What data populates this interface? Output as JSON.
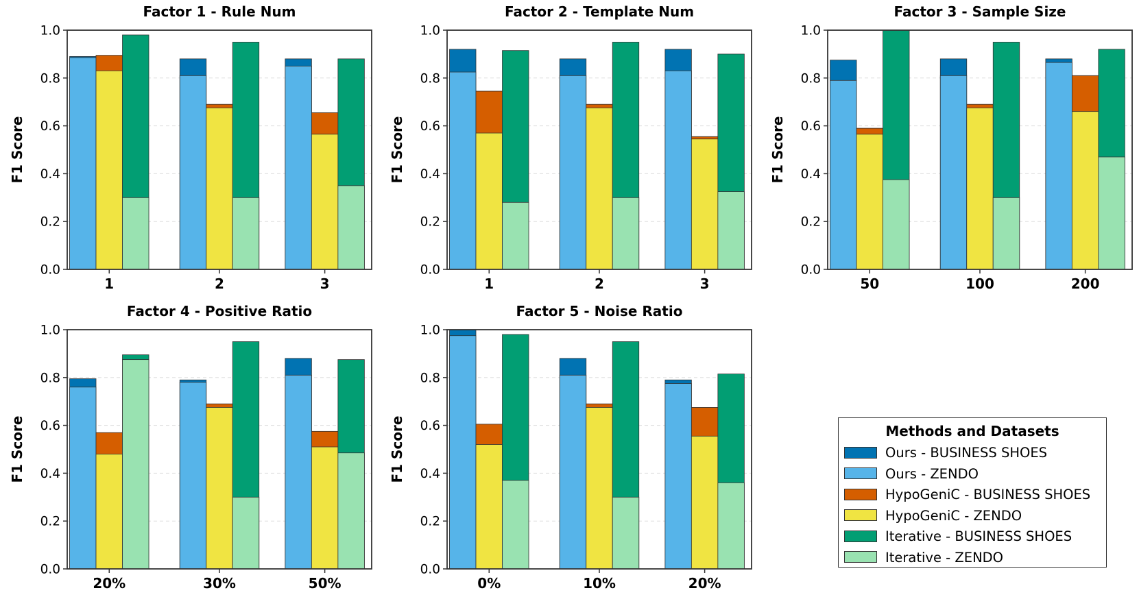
{
  "legend": {
    "title": "Methods and Datasets",
    "entries": [
      {
        "label": "Ours - BUSINESS SHOES",
        "color": "#0173b2"
      },
      {
        "label": "Ours - ZENDO",
        "color": "#56b4e9"
      },
      {
        "label": "HypoGeniC - BUSINESS SHOES",
        "color": "#d55e00"
      },
      {
        "label": "HypoGeniC - ZENDO",
        "color": "#f0e442"
      },
      {
        "label": "Iterative - BUSINESS SHOES",
        "color": "#029e73"
      },
      {
        "label": "Iterative - ZENDO",
        "color": "#99e2b1"
      }
    ]
  },
  "chart_data": [
    {
      "type": "bar",
      "title": "Factor 1 - Rule Num",
      "ylabel": "F1 Score",
      "ylim": [
        0,
        1.0
      ],
      "yticks": [
        "0.0",
        "0.2",
        "0.4",
        "0.6",
        "0.8",
        "1.0"
      ],
      "categories": [
        "1",
        "2",
        "3"
      ],
      "grid": "horizontal dashed",
      "series": [
        {
          "name": "Ours - BUSINESS SHOES",
          "values": [
            0.89,
            0.88,
            0.88
          ]
        },
        {
          "name": "Ours - ZENDO",
          "values": [
            0.885,
            0.81,
            0.85
          ]
        },
        {
          "name": "HypoGeniC - BUSINESS SHOES",
          "values": [
            0.895,
            0.69,
            0.655
          ]
        },
        {
          "name": "HypoGeniC - ZENDO",
          "values": [
            0.83,
            0.675,
            0.565
          ]
        },
        {
          "name": "Iterative - BUSINESS SHOES",
          "values": [
            0.98,
            0.95,
            0.88
          ]
        },
        {
          "name": "Iterative - ZENDO",
          "values": [
            0.3,
            0.3,
            0.35
          ]
        }
      ]
    },
    {
      "type": "bar",
      "title": "Factor 2 - Template Num",
      "ylabel": "F1 Score",
      "ylim": [
        0,
        1.0
      ],
      "yticks": [
        "0.0",
        "0.2",
        "0.4",
        "0.6",
        "0.8",
        "1.0"
      ],
      "categories": [
        "1",
        "2",
        "3"
      ],
      "grid": "horizontal dashed",
      "series": [
        {
          "name": "Ours - BUSINESS SHOES",
          "values": [
            0.92,
            0.88,
            0.92
          ]
        },
        {
          "name": "Ours - ZENDO",
          "values": [
            0.825,
            0.81,
            0.83
          ]
        },
        {
          "name": "HypoGeniC - BUSINESS SHOES",
          "values": [
            0.745,
            0.69,
            0.555
          ]
        },
        {
          "name": "HypoGeniC - ZENDO",
          "values": [
            0.57,
            0.675,
            0.545
          ]
        },
        {
          "name": "Iterative - BUSINESS SHOES",
          "values": [
            0.915,
            0.95,
            0.9
          ]
        },
        {
          "name": "Iterative - ZENDO",
          "values": [
            0.28,
            0.3,
            0.325
          ]
        }
      ]
    },
    {
      "type": "bar",
      "title": "Factor 3 - Sample Size",
      "ylabel": "F1 Score",
      "ylim": [
        0,
        1.0
      ],
      "yticks": [
        "0.0",
        "0.2",
        "0.4",
        "0.6",
        "0.8",
        "1.0"
      ],
      "categories": [
        "50",
        "100",
        "200"
      ],
      "grid": "horizontal dashed",
      "series": [
        {
          "name": "Ours - BUSINESS SHOES",
          "values": [
            0.875,
            0.88,
            0.88
          ]
        },
        {
          "name": "Ours - ZENDO",
          "values": [
            0.79,
            0.81,
            0.865
          ]
        },
        {
          "name": "HypoGeniC - BUSINESS SHOES",
          "values": [
            0.59,
            0.69,
            0.81
          ]
        },
        {
          "name": "HypoGeniC - ZENDO",
          "values": [
            0.565,
            0.675,
            0.66
          ]
        },
        {
          "name": "Iterative - BUSINESS SHOES",
          "values": [
            1.0,
            0.95,
            0.92
          ]
        },
        {
          "name": "Iterative - ZENDO",
          "values": [
            0.375,
            0.3,
            0.47
          ]
        }
      ]
    },
    {
      "type": "bar",
      "title": "Factor 4 - Positive Ratio",
      "ylabel": "F1 Score",
      "ylim": [
        0,
        1.0
      ],
      "yticks": [
        "0.0",
        "0.2",
        "0.4",
        "0.6",
        "0.8",
        "1.0"
      ],
      "categories": [
        "20%",
        "30%",
        "50%"
      ],
      "grid": "horizontal dashed",
      "series": [
        {
          "name": "Ours - BUSINESS SHOES",
          "values": [
            0.795,
            0.79,
            0.88
          ]
        },
        {
          "name": "Ours - ZENDO",
          "values": [
            0.76,
            0.78,
            0.81
          ]
        },
        {
          "name": "HypoGeniC - BUSINESS SHOES",
          "values": [
            0.57,
            0.69,
            0.575
          ]
        },
        {
          "name": "HypoGeniC - ZENDO",
          "values": [
            0.48,
            0.675,
            0.51
          ]
        },
        {
          "name": "Iterative - BUSINESS SHOES",
          "values": [
            0.895,
            0.95,
            0.875
          ]
        },
        {
          "name": "Iterative - ZENDO",
          "values": [
            0.875,
            0.3,
            0.485
          ]
        }
      ]
    },
    {
      "type": "bar",
      "title": "Factor 5 - Noise Ratio",
      "ylabel": "F1 Score",
      "ylim": [
        0,
        1.0
      ],
      "yticks": [
        "0.0",
        "0.2",
        "0.4",
        "0.6",
        "0.8",
        "1.0"
      ],
      "categories": [
        "0%",
        "10%",
        "20%"
      ],
      "grid": "horizontal dashed",
      "series": [
        {
          "name": "Ours - BUSINESS SHOES",
          "values": [
            1.0,
            0.88,
            0.79
          ]
        },
        {
          "name": "Ours - ZENDO",
          "values": [
            0.975,
            0.81,
            0.775
          ]
        },
        {
          "name": "HypoGeniC - BUSINESS SHOES",
          "values": [
            0.605,
            0.69,
            0.675
          ]
        },
        {
          "name": "HypoGeniC - ZENDO",
          "values": [
            0.52,
            0.675,
            0.555
          ]
        },
        {
          "name": "Iterative - BUSINESS SHOES",
          "values": [
            0.98,
            0.95,
            0.815
          ]
        },
        {
          "name": "Iterative - ZENDO",
          "values": [
            0.37,
            0.3,
            0.36
          ]
        }
      ]
    }
  ]
}
